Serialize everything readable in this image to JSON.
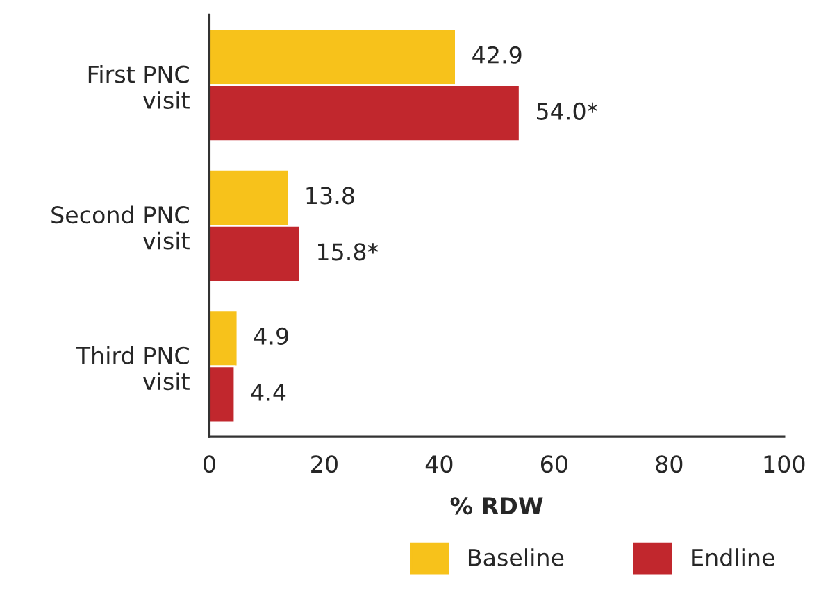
{
  "chart_data": {
    "type": "bar",
    "orientation": "horizontal",
    "xlabel": "% RDW",
    "categories": [
      "First PNC\nvisit",
      "Second PNC\nvisit",
      "Third PNC\nvisit"
    ],
    "series": [
      {
        "name": "Baseline",
        "color": "#f7c21b",
        "values": [
          42.9,
          13.8,
          4.9
        ],
        "value_labels": [
          "42.9",
          "13.8",
          "4.9"
        ]
      },
      {
        "name": "Endline",
        "color": "#c1272d",
        "values": [
          54.0,
          15.8,
          4.4
        ],
        "value_labels": [
          "54.0*",
          "15.8*",
          "4.4"
        ]
      }
    ],
    "xlim": [
      0,
      100
    ],
    "xticks": [
      0,
      20,
      40,
      60,
      80,
      100
    ],
    "grid": false,
    "legend": "bottom right"
  }
}
